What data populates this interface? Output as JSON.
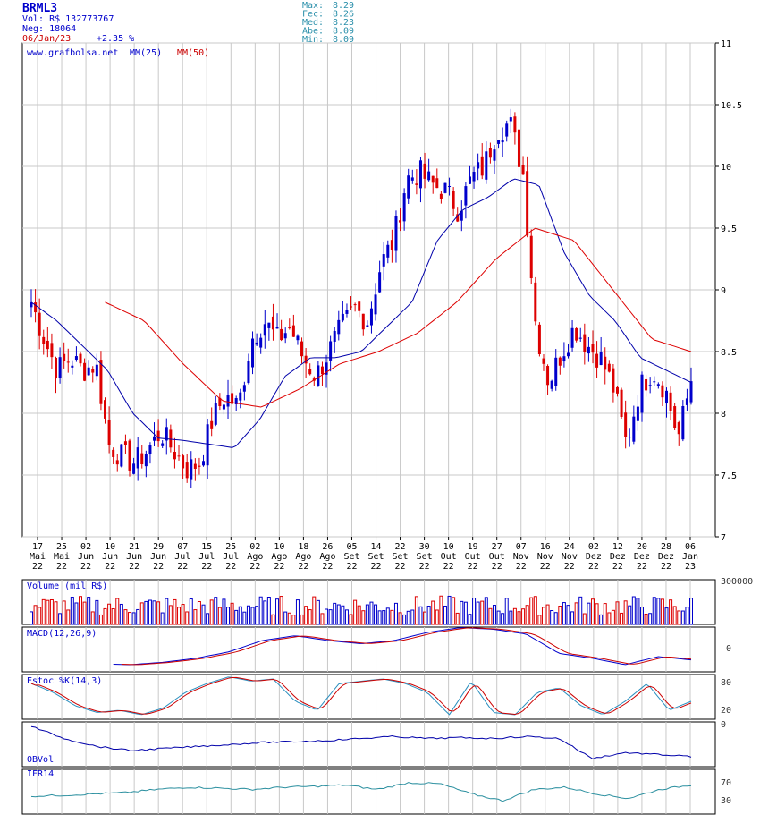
{
  "header": {
    "ticker": "BRML3",
    "vol": "Vol: R$ 132773767",
    "neg": "Neg: 18064",
    "date": "06/Jan/23",
    "change": "+2.35 %",
    "stats": [
      {
        "label": "Max:",
        "value": "8.29"
      },
      {
        "label": "Fec:",
        "value": "8.26"
      },
      {
        "label": "Med:",
        "value": "8.23"
      },
      {
        "label": "Abe:",
        "value": "8.09"
      },
      {
        "label": "Min:",
        "value": "8.09"
      }
    ]
  },
  "main_legend": {
    "site": "www.grafbolsa.net",
    "ma_short": "MM(25)",
    "ma_long": "MM(50)"
  },
  "panel_labels": {
    "volume": "Volume (mil R$)",
    "volume_tick": "300000",
    "macd": "MACD(12,26,9)",
    "macd_tick": "0",
    "stoch": "Estoc %K(14,3)",
    "stoch_ticks": [
      "80",
      "20"
    ],
    "obv": "OBVol",
    "obv_tick": "0",
    "ifr": "IFR14",
    "ifr_ticks": [
      "70",
      "30"
    ]
  },
  "colors": {
    "up": "#0000cc",
    "down": "#dd0000",
    "ma_short": "#0000aa",
    "ma_long": "#dd0000",
    "grid": "#c8c8c8",
    "stoch_k": "#2a8fbf",
    "ifr": "#2a8f9f"
  },
  "chart_data": {
    "type": "candlestick",
    "title": "BRML3",
    "ylim": [
      7,
      11
    ],
    "y_ticks": [
      "7",
      "7.5",
      "8",
      "8.5",
      "9",
      "9.5",
      "10",
      "10.5",
      "11"
    ],
    "x_ticks": [
      {
        "day": "17",
        "mon": "Mai",
        "yr": "22"
      },
      {
        "day": "25",
        "mon": "Mai",
        "yr": "22"
      },
      {
        "day": "02",
        "mon": "Jun",
        "yr": "22"
      },
      {
        "day": "10",
        "mon": "Jun",
        "yr": "22"
      },
      {
        "day": "21",
        "mon": "Jun",
        "yr": "22"
      },
      {
        "day": "29",
        "mon": "Jun",
        "yr": "22"
      },
      {
        "day": "07",
        "mon": "Jul",
        "yr": "22"
      },
      {
        "day": "15",
        "mon": "Jul",
        "yr": "22"
      },
      {
        "day": "25",
        "mon": "Jul",
        "yr": "22"
      },
      {
        "day": "02",
        "mon": "Ago",
        "yr": "22"
      },
      {
        "day": "10",
        "mon": "Ago",
        "yr": "22"
      },
      {
        "day": "18",
        "mon": "Ago",
        "yr": "22"
      },
      {
        "day": "26",
        "mon": "Ago",
        "yr": "22"
      },
      {
        "day": "05",
        "mon": "Set",
        "yr": "22"
      },
      {
        "day": "14",
        "mon": "Set",
        "yr": "22"
      },
      {
        "day": "22",
        "mon": "Set",
        "yr": "22"
      },
      {
        "day": "30",
        "mon": "Set",
        "yr": "22"
      },
      {
        "day": "10",
        "mon": "Out",
        "yr": "22"
      },
      {
        "day": "19",
        "mon": "Out",
        "yr": "22"
      },
      {
        "day": "27",
        "mon": "Out",
        "yr": "22"
      },
      {
        "day": "07",
        "mon": "Nov",
        "yr": "22"
      },
      {
        "day": "16",
        "mon": "Nov",
        "yr": "22"
      },
      {
        "day": "24",
        "mon": "Nov",
        "yr": "22"
      },
      {
        "day": "02",
        "mon": "Dez",
        "yr": "22"
      },
      {
        "day": "12",
        "mon": "Dez",
        "yr": "22"
      },
      {
        "day": "20",
        "mon": "Dez",
        "yr": "22"
      },
      {
        "day": "28",
        "mon": "Dez",
        "yr": "22"
      },
      {
        "day": "06",
        "mon": "Jan",
        "yr": "23"
      }
    ],
    "close_anchors": [
      8.9,
      8.6,
      8.35,
      8.45,
      8.35,
      8.4,
      7.75,
      7.65,
      7.6,
      7.7,
      7.85,
      7.7,
      7.55,
      7.6,
      7.95,
      8.15,
      8.05,
      8.6,
      8.75,
      8.6,
      8.7,
      8.45,
      8.3,
      8.5,
      8.7,
      8.85,
      8.75,
      9.2,
      9.4,
      9.9,
      9.95,
      9.85,
      9.8,
      9.65,
      9.9,
      10.0,
      10.3,
      10.35,
      9.95,
      8.7,
      8.25,
      8.5,
      8.7,
      8.55,
      8.45,
      8.2,
      7.75,
      8.2,
      8.35,
      8.2,
      7.8,
      8.26
    ],
    "ma25_anchors": [
      8.9,
      8.75,
      8.55,
      8.35,
      8.0,
      7.8,
      7.78,
      7.75,
      7.72,
      7.95,
      8.3,
      8.45,
      8.45,
      8.5,
      8.7,
      8.9,
      9.4,
      9.65,
      9.75,
      9.9,
      9.85,
      9.3,
      8.95,
      8.75,
      8.45,
      8.35,
      8.25
    ],
    "ma50_anchors": [
      8.9,
      8.75,
      8.4,
      8.1,
      8.05,
      8.2,
      8.4,
      8.5,
      8.65,
      8.9,
      9.25,
      9.5,
      9.4,
      9.0,
      8.6,
      8.5
    ]
  }
}
